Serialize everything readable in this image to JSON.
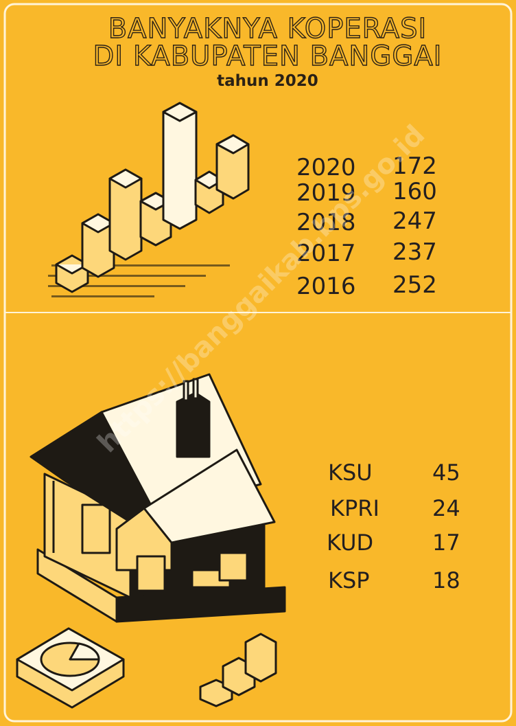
{
  "header": {
    "title_lines": [
      "BANYAKNYA KOPERASI",
      "DI KABUPATEN BANGGAI"
    ],
    "subtitle": "tahun 2020"
  },
  "years": [
    {
      "year": "2020",
      "count": 172
    },
    {
      "year": "2019",
      "count": 160
    },
    {
      "year": "2018",
      "count": 247
    },
    {
      "year": "2017",
      "count": 237
    },
    {
      "year": "2016",
      "count": 252
    }
  ],
  "types": [
    {
      "name": "KSU",
      "count": 45
    },
    {
      "name": "KPRI",
      "count": 24
    },
    {
      "name": "KUD",
      "count": 17
    },
    {
      "name": "KSP",
      "count": 18
    }
  ],
  "watermark": "https://banggaikab.bps.go.id"
}
